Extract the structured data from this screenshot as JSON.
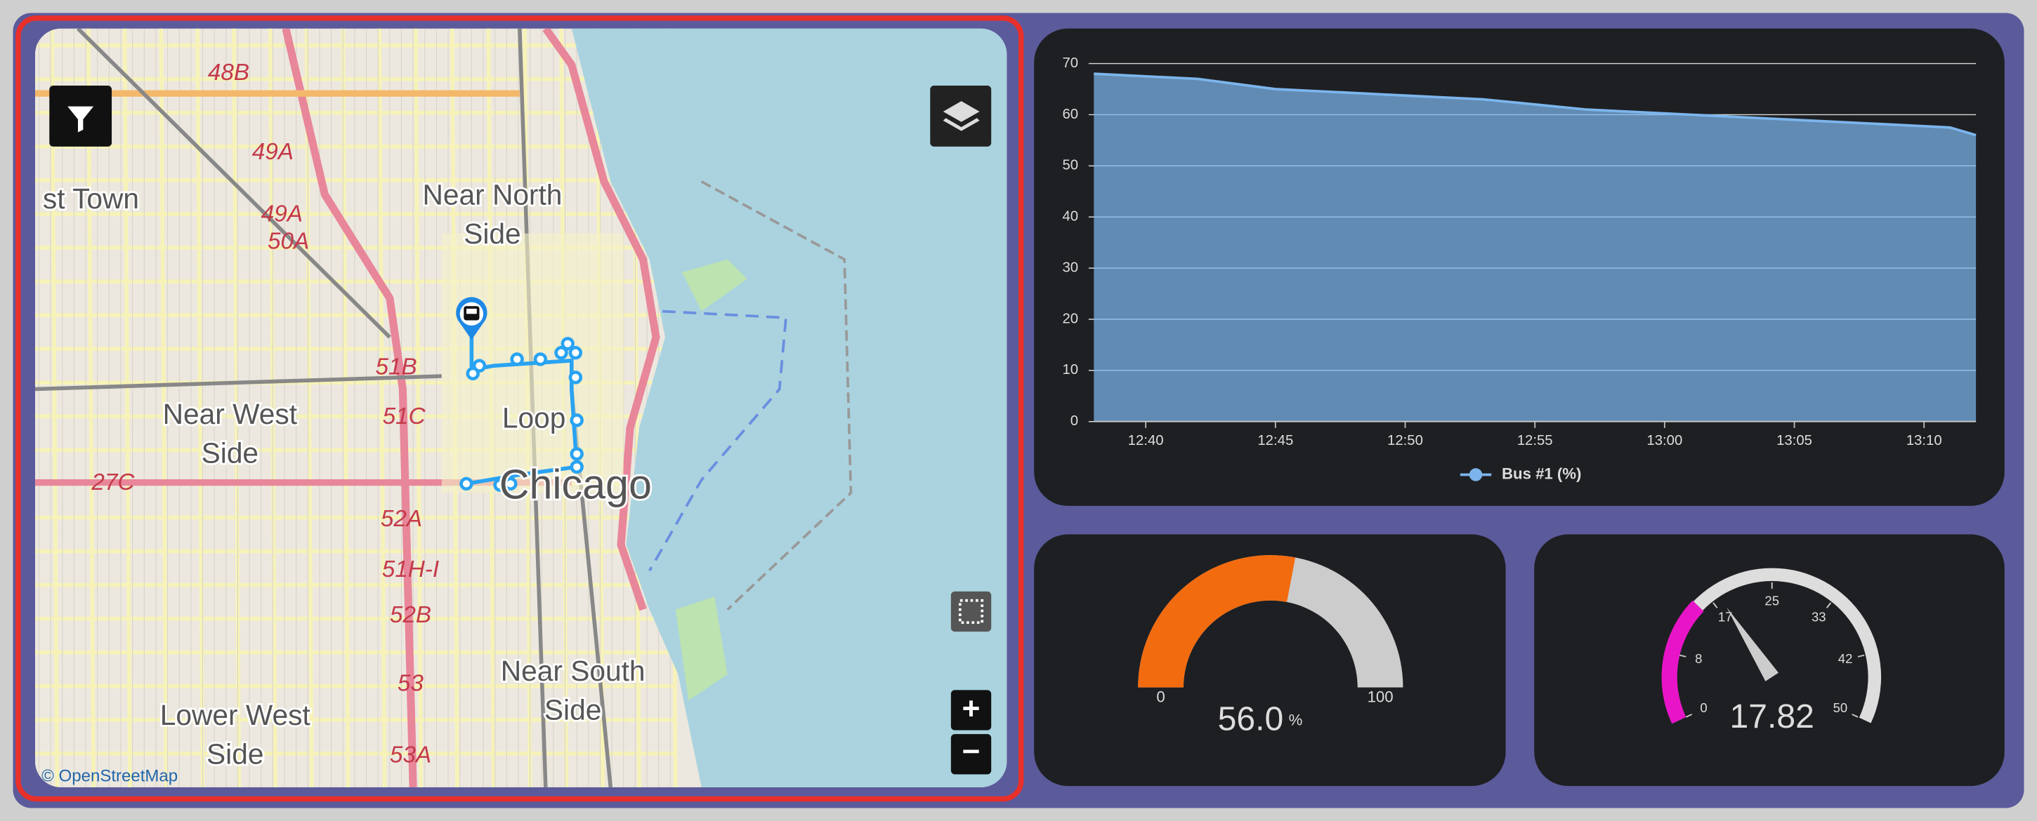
{
  "map": {
    "labels": [
      "48B",
      "49A",
      "49A",
      "50A",
      "st Town",
      "Near North",
      "Side",
      "51B",
      "51C",
      "Near West",
      "Side",
      "Loop",
      "Chicago",
      "27C",
      "52A",
      "51H-I",
      "52B",
      "53",
      "Near South",
      "Side",
      "Lower West",
      "Side",
      "53A"
    ],
    "attribution": "© OpenStreetMap",
    "zoom_in": "+",
    "zoom_out": "−"
  },
  "chart_data": [
    {
      "type": "area",
      "x": [
        "12:38",
        "12:42",
        "12:45",
        "12:49",
        "12:53",
        "12:57",
        "13:01",
        "13:05",
        "13:09",
        "13:11",
        "13:12"
      ],
      "series": [
        {
          "name": "Bus #1 (%)",
          "color": "#7cb5ec",
          "values": [
            68,
            67,
            65,
            64,
            63,
            61,
            60,
            59,
            58,
            57.5,
            56
          ]
        }
      ],
      "xlim": [
        "12:38",
        "13:12"
      ],
      "xticks": [
        "12:40",
        "12:45",
        "12:50",
        "12:55",
        "13:00",
        "13:05",
        "13:10"
      ],
      "ylim": [
        0,
        70
      ],
      "yticks": [
        0,
        10,
        20,
        30,
        40,
        50,
        60,
        70
      ],
      "grid": true
    },
    {
      "type": "gauge",
      "values": [
        56
      ],
      "value_labels": [
        "56.0"
      ],
      "unit": "%",
      "color": "#f26b0f",
      "track_color": "#cccccc",
      "ylim": [
        0,
        100
      ],
      "yticks": [
        0,
        100
      ]
    },
    {
      "type": "gauge",
      "values": [
        17.82
      ],
      "color": "#cccccc",
      "track_color": "#dddddd",
      "bands": [
        {
          "from": 0,
          "to": 15,
          "color": "#e815c8"
        }
      ],
      "ylim": [
        0,
        50
      ],
      "yticks": [
        0,
        {
          "value": 8.333,
          "label": "8"
        },
        {
          "value": 16.667,
          "label": "17"
        },
        25,
        {
          "value": 33.333,
          "label": "33"
        },
        {
          "value": 41.667,
          "label": "42"
        },
        50
      ]
    }
  ]
}
